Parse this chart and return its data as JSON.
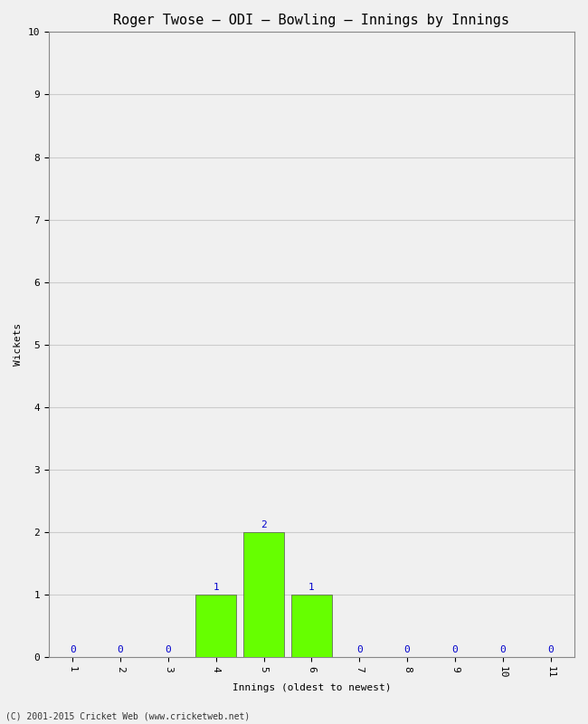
{
  "title": "Roger Twose – ODI – Bowling – Innings by Innings",
  "xlabel": "Innings (oldest to newest)",
  "ylabel": "Wickets",
  "innings": [
    1,
    2,
    3,
    4,
    5,
    6,
    7,
    8,
    9,
    10,
    11
  ],
  "wickets": [
    0,
    0,
    0,
    1,
    2,
    1,
    0,
    0,
    0,
    0,
    0
  ],
  "bar_color": "#66ff00",
  "bar_edge_color": "#555555",
  "label_color": "#0000cc",
  "ylim": [
    0,
    10
  ],
  "yticks": [
    0,
    1,
    2,
    3,
    4,
    5,
    6,
    7,
    8,
    9,
    10
  ],
  "xticks": [
    1,
    2,
    3,
    4,
    5,
    6,
    7,
    8,
    9,
    10,
    11
  ],
  "background_color": "#f0f0f0",
  "plot_background": "#f0f0f0",
  "grid_color": "#cccccc",
  "footer": "(C) 2001-2015 Cricket Web (www.cricketweb.net)",
  "title_fontsize": 11,
  "axis_label_fontsize": 8,
  "tick_fontsize": 8,
  "annotation_fontsize": 8,
  "footer_fontsize": 7
}
